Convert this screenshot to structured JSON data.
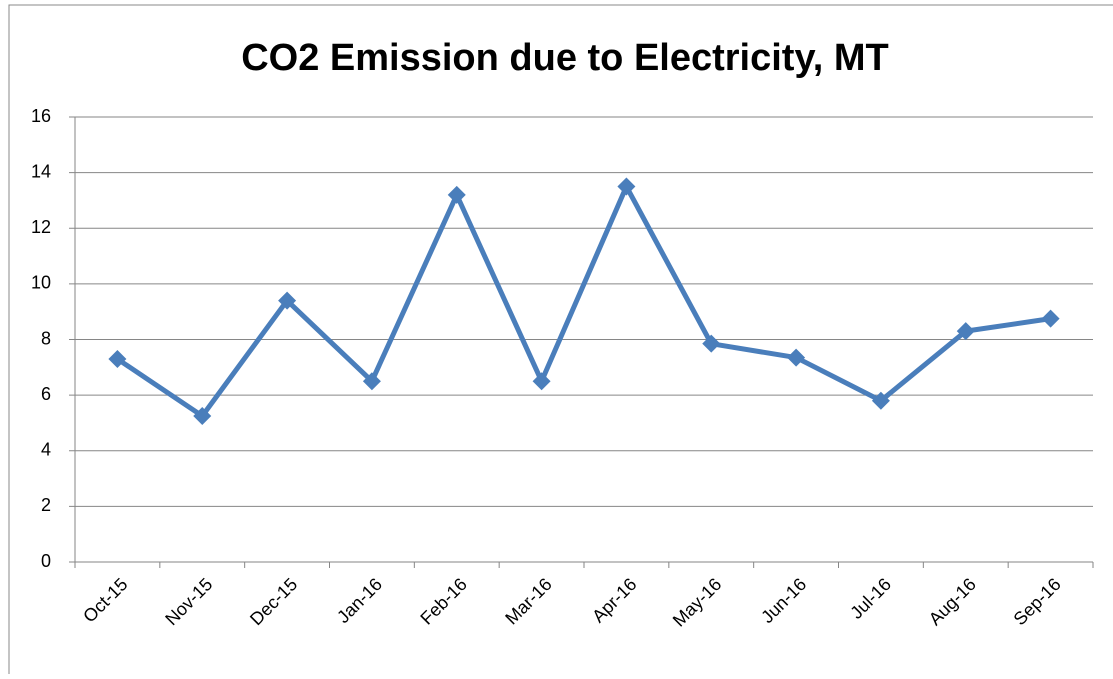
{
  "chart_data": {
    "type": "line",
    "title": "CO2 Emission due to Electricity, MT",
    "categories": [
      "Oct-15",
      "Nov-15",
      "Dec-15",
      "Jan-16",
      "Feb-16",
      "Mar-16",
      "Apr-16",
      "May-16",
      "Jun-16",
      "Jul-16",
      "Aug-16",
      "Sep-16"
    ],
    "values": [
      7.3,
      5.25,
      9.4,
      6.5,
      13.2,
      6.5,
      13.5,
      7.85,
      7.35,
      5.8,
      8.3,
      8.75
    ],
    "color": "#4a7ebb",
    "ylim": [
      0,
      16
    ],
    "yticks": [
      0,
      2,
      4,
      6,
      8,
      10,
      12,
      14,
      16
    ],
    "grid": true
  }
}
